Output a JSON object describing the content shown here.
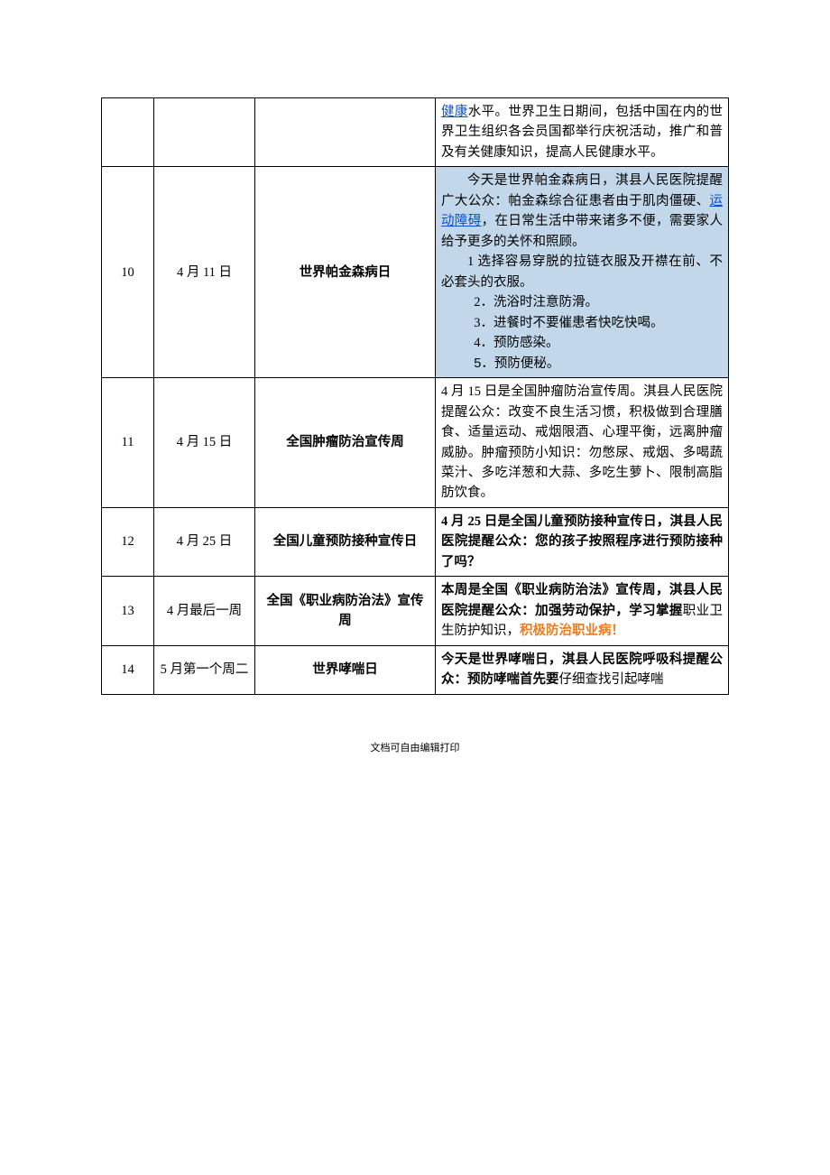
{
  "colors": {
    "link": "#0b4fcc",
    "highlight_bg": "#c2d8ea",
    "orange": "#ee7c1a",
    "border": "#000000",
    "text": "#000000",
    "page_bg": "#ffffff"
  },
  "rows": [
    {
      "num": "",
      "date": "",
      "title": "",
      "title_bold": false,
      "desc_parts": [
        {
          "t": "link",
          "v": "健康"
        },
        {
          "t": "plain",
          "v": "水平。世界卫生日期间，包括中国在内的世界卫生组织各会员国都举行庆祝活动，推广和普及有关健康知识，提高人民健康水平。"
        }
      ],
      "desc_bg": false,
      "continuation": true
    },
    {
      "num": "10",
      "date": "4 月 11 日",
      "title": "世界帕金森病日",
      "title_bold": true,
      "desc_bg": true,
      "desc_lines": [
        {
          "indent": true,
          "parts": [
            {
              "t": "plain",
              "v": "今天是世界帕金森病日，淇县人民医院提醒广大公众：帕金森综合征患者由于肌肉僵硬、"
            },
            {
              "t": "link",
              "v": "运动障碍"
            },
            {
              "t": "plain",
              "v": "，在日常生活中带来诸多不便，需要家人给予更多的关怀和照顾。"
            }
          ]
        },
        {
          "indent": true,
          "parts": [
            {
              "t": "plain",
              "v": "1 选择容易穿脱的拉链衣服及开襟在前、不必套头的衣服。"
            }
          ]
        },
        {
          "indent": "more",
          "parts": [
            {
              "t": "plain",
              "v": "2．洗浴时注意防滑。"
            }
          ]
        },
        {
          "indent": "more",
          "parts": [
            {
              "t": "plain",
              "v": "3．进餐时不要催患者快吃快喝。"
            }
          ]
        },
        {
          "indent": "more",
          "parts": [
            {
              "t": "plain",
              "v": "4．预防感染。"
            }
          ]
        },
        {
          "indent": "more",
          "parts": [
            {
              "t": "sans",
              "v": "5．"
            },
            {
              "t": "plain",
              "v": "预防便秘。"
            }
          ]
        }
      ]
    },
    {
      "num": "11",
      "date": "4 月 15 日",
      "title": "全国肿瘤防治宣传周",
      "title_bold": true,
      "desc_bg": false,
      "desc_parts": [
        {
          "t": "plain",
          "v": "4 月 15 日是全国肿瘤防治宣传周。淇县人民医院提醒公众：改变不良生活习惯，积极做到合理膳食、适量运动、戒烟限酒、心理平衡，远离肿瘤威胁。肿瘤预防小知识：勿憋尿、戒烟、多喝蔬菜汁、多吃洋葱和大蒜、多吃生萝卜、限制高脂肪饮食。"
        }
      ]
    },
    {
      "num": "12",
      "date": "4 月 25 日",
      "title": "全国儿童预防接种宣传日",
      "title_bold": true,
      "desc_bg": false,
      "desc_parts": [
        {
          "t": "bold",
          "v": "4 月 25 日是全国儿童预防接种宣传日，淇县人民医院提醒公众：您的孩子按照程序进行预防接种了吗？"
        }
      ]
    },
    {
      "num": "13",
      "date": "4 月最后一周",
      "title": "全国《职业病防治法》宣传周",
      "title_bold": true,
      "desc_bg": false,
      "desc_parts": [
        {
          "t": "bold",
          "v": "本周是全国《职业病防治法》宣传周，淇县人民医院提醒公众：加强劳动保护，学习掌握"
        },
        {
          "t": "plain",
          "v": "职业卫生防护知识，"
        },
        {
          "t": "orange_bold",
          "v": "积极防治职业病！"
        }
      ]
    },
    {
      "num": "14",
      "date": "5 月第一个周二",
      "title": "世界哮喘日",
      "title_bold": true,
      "desc_bg": false,
      "desc_parts": [
        {
          "t": "bold",
          "v": "今天是世界哮喘日，淇县人民医院呼吸科提醒公众：预防哮喘首先要"
        },
        {
          "t": "plain",
          "v": "仔细查找引起哮喘"
        }
      ]
    }
  ],
  "footer": "文档可自由编辑打印"
}
